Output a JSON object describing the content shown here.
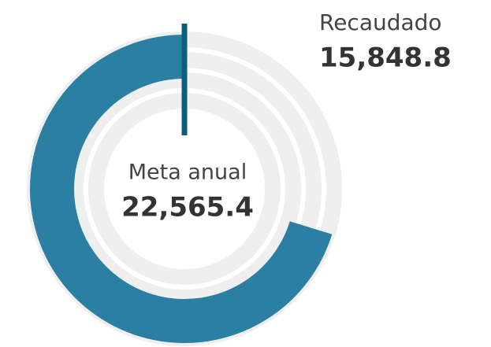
{
  "chart_data": {
    "type": "radial_gauge",
    "series": [
      {
        "name": "Recaudado",
        "values": [
          15848.8
        ],
        "value_labels": [
          "15,848.8"
        ],
        "color": "#2a7fa3"
      }
    ],
    "target": {
      "name": "Meta anual",
      "value": 22565.4,
      "label": "22,565.4",
      "color": "#0d5e7d"
    }
  }
}
